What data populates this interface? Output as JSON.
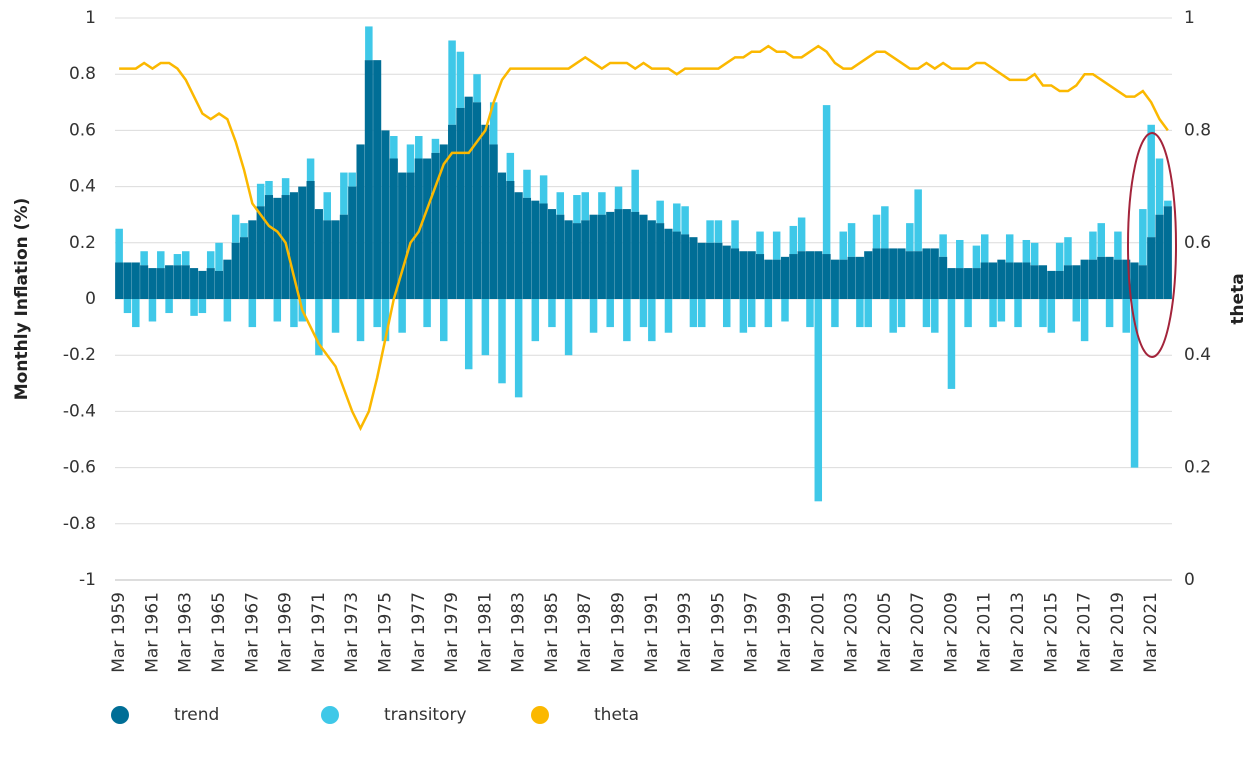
{
  "chart_data": {
    "type": "bar",
    "y_label": "Monthly Inflation (%)",
    "y2_label": "theta",
    "ylim": [
      -1,
      1
    ],
    "yticks": [
      -1,
      -0.8,
      -0.6,
      -0.4,
      -0.2,
      0,
      0.2,
      0.4,
      0.6,
      0.8,
      1
    ],
    "y2lim": [
      0,
      1
    ],
    "y2ticks": [
      0,
      0.2,
      0.4,
      0.6,
      0.8,
      1
    ],
    "grid": true,
    "categories": [
      "Mar 1959",
      null,
      null,
      null,
      "Mar 1961",
      null,
      null,
      null,
      "Mar 1963",
      null,
      null,
      null,
      "Mar 1965",
      null,
      null,
      null,
      "Mar 1967",
      null,
      null,
      null,
      "Mar 1969",
      null,
      null,
      null,
      "Mar 1971",
      null,
      null,
      null,
      "Mar 1973",
      null,
      null,
      null,
      "Mar 1975",
      null,
      null,
      null,
      "Mar 1977",
      null,
      null,
      null,
      "Mar 1979",
      null,
      null,
      null,
      "Mar 1981",
      null,
      null,
      null,
      "Mar 1983",
      null,
      null,
      null,
      "Mar 1985",
      null,
      null,
      null,
      "Mar 1987",
      null,
      null,
      null,
      "Mar 1989",
      null,
      null,
      null,
      "Mar 1991",
      null,
      null,
      null,
      "Mar 1993",
      null,
      null,
      null,
      "Mar 1995",
      null,
      null,
      null,
      "Mar 1997",
      null,
      null,
      null,
      "Mar 1999",
      null,
      null,
      null,
      "Mar 2001",
      null,
      null,
      null,
      "Mar 2003",
      null,
      null,
      null,
      "Mar 2005",
      null,
      null,
      null,
      "Mar 2007",
      null,
      null,
      null,
      "Mar 2009",
      null,
      null,
      null,
      "Mar 2011",
      null,
      null,
      null,
      "Mar 2013",
      null,
      null,
      null,
      "Mar 2015",
      null,
      null,
      null,
      "Mar 2017",
      null,
      null,
      null,
      "Mar 2019",
      null,
      null,
      null,
      "Mar 2021",
      null,
      null
    ],
    "series": [
      {
        "name": "trend",
        "color": "#006e96",
        "values": [
          0.13,
          0.13,
          0.13,
          0.12,
          0.11,
          0.11,
          0.12,
          0.12,
          0.12,
          0.11,
          0.1,
          0.11,
          0.1,
          0.14,
          0.2,
          0.22,
          0.28,
          0.33,
          0.37,
          0.36,
          0.37,
          0.38,
          0.4,
          0.42,
          0.32,
          0.28,
          0.28,
          0.3,
          0.4,
          0.55,
          0.85,
          0.85,
          0.6,
          0.5,
          0.45,
          0.45,
          0.5,
          0.5,
          0.52,
          0.55,
          0.62,
          0.68,
          0.72,
          0.7,
          0.62,
          0.55,
          0.45,
          0.42,
          0.38,
          0.36,
          0.35,
          0.34,
          0.32,
          0.3,
          0.28,
          0.27,
          0.28,
          0.3,
          0.3,
          0.31,
          0.32,
          0.32,
          0.31,
          0.3,
          0.28,
          0.27,
          0.25,
          0.24,
          0.23,
          0.22,
          0.2,
          0.2,
          0.2,
          0.19,
          0.18,
          0.17,
          0.17,
          0.16,
          0.14,
          0.14,
          0.15,
          0.16,
          0.17,
          0.17,
          0.17,
          0.16,
          0.14,
          0.14,
          0.15,
          0.15,
          0.17,
          0.18,
          0.18,
          0.18,
          0.18,
          0.17,
          0.17,
          0.18,
          0.18,
          0.15,
          0.11,
          0.11,
          0.11,
          0.11,
          0.13,
          0.13,
          0.14,
          0.13,
          0.13,
          0.13,
          0.12,
          0.12,
          0.1,
          0.1,
          0.12,
          0.12,
          0.14,
          0.14,
          0.15,
          0.15,
          0.14,
          0.14,
          0.13,
          0.12,
          0.22,
          0.3,
          0.33
        ]
      },
      {
        "name": "transitory",
        "color": "#3fc8e8",
        "values": [
          0.12,
          -0.05,
          -0.1,
          0.05,
          -0.08,
          0.06,
          -0.05,
          0.04,
          0.05,
          -0.06,
          -0.05,
          0.06,
          0.1,
          -0.08,
          0.1,
          0.05,
          -0.1,
          0.08,
          0.05,
          -0.08,
          0.06,
          -0.1,
          -0.08,
          0.08,
          -0.2,
          0.1,
          -0.12,
          0.15,
          0.05,
          -0.15,
          0.12,
          -0.1,
          -0.15,
          0.08,
          -0.12,
          0.1,
          0.08,
          -0.1,
          0.05,
          -0.15,
          0.3,
          0.2,
          -0.25,
          0.1,
          -0.2,
          0.15,
          -0.3,
          0.1,
          -0.35,
          0.1,
          -0.15,
          0.1,
          -0.1,
          0.08,
          -0.2,
          0.1,
          0.1,
          -0.12,
          0.08,
          -0.1,
          0.08,
          -0.15,
          0.15,
          -0.1,
          -0.15,
          0.08,
          -0.12,
          0.1,
          0.1,
          -0.1,
          -0.1,
          0.08,
          0.08,
          -0.1,
          0.1,
          -0.12,
          -0.1,
          0.08,
          -0.1,
          0.1,
          -0.08,
          0.1,
          0.12,
          -0.1,
          -0.72,
          0.53,
          -0.1,
          0.1,
          0.12,
          -0.1,
          -0.1,
          0.12,
          0.15,
          -0.12,
          -0.1,
          0.1,
          0.22,
          -0.1,
          -0.12,
          0.08,
          -0.32,
          0.1,
          -0.1,
          0.08,
          0.1,
          -0.1,
          -0.08,
          0.1,
          -0.1,
          0.08,
          0.08,
          -0.1,
          -0.12,
          0.1,
          0.1,
          -0.08,
          -0.15,
          0.1,
          0.12,
          -0.1,
          0.1,
          -0.12,
          -0.6,
          0.2,
          0.4,
          0.2,
          0.02
        ]
      },
      {
        "name": "theta",
        "color": "#fbb800",
        "axis": "y2",
        "values": [
          0.91,
          0.91,
          0.91,
          0.92,
          0.91,
          0.92,
          0.92,
          0.91,
          0.89,
          0.86,
          0.83,
          0.82,
          0.83,
          0.82,
          0.78,
          0.73,
          0.67,
          0.65,
          0.63,
          0.62,
          0.6,
          0.54,
          0.48,
          0.45,
          0.42,
          0.4,
          0.38,
          0.34,
          0.3,
          0.27,
          0.3,
          0.36,
          0.43,
          0.5,
          0.55,
          0.6,
          0.62,
          0.66,
          0.7,
          0.74,
          0.76,
          0.76,
          0.76,
          0.78,
          0.8,
          0.85,
          0.89,
          0.91,
          0.91,
          0.91,
          0.91,
          0.91,
          0.91,
          0.91,
          0.91,
          0.92,
          0.93,
          0.92,
          0.91,
          0.92,
          0.92,
          0.92,
          0.91,
          0.92,
          0.91,
          0.91,
          0.91,
          0.9,
          0.91,
          0.91,
          0.91,
          0.91,
          0.91,
          0.92,
          0.93,
          0.93,
          0.94,
          0.94,
          0.95,
          0.94,
          0.94,
          0.93,
          0.93,
          0.94,
          0.95,
          0.94,
          0.92,
          0.91,
          0.91,
          0.92,
          0.93,
          0.94,
          0.94,
          0.93,
          0.92,
          0.91,
          0.91,
          0.92,
          0.91,
          0.92,
          0.91,
          0.91,
          0.91,
          0.92,
          0.92,
          0.91,
          0.9,
          0.89,
          0.89,
          0.89,
          0.9,
          0.88,
          0.88,
          0.87,
          0.87,
          0.88,
          0.9,
          0.9,
          0.89,
          0.88,
          0.87,
          0.86,
          0.86,
          0.87,
          0.85,
          0.82,
          0.8
        ]
      }
    ]
  }
}
